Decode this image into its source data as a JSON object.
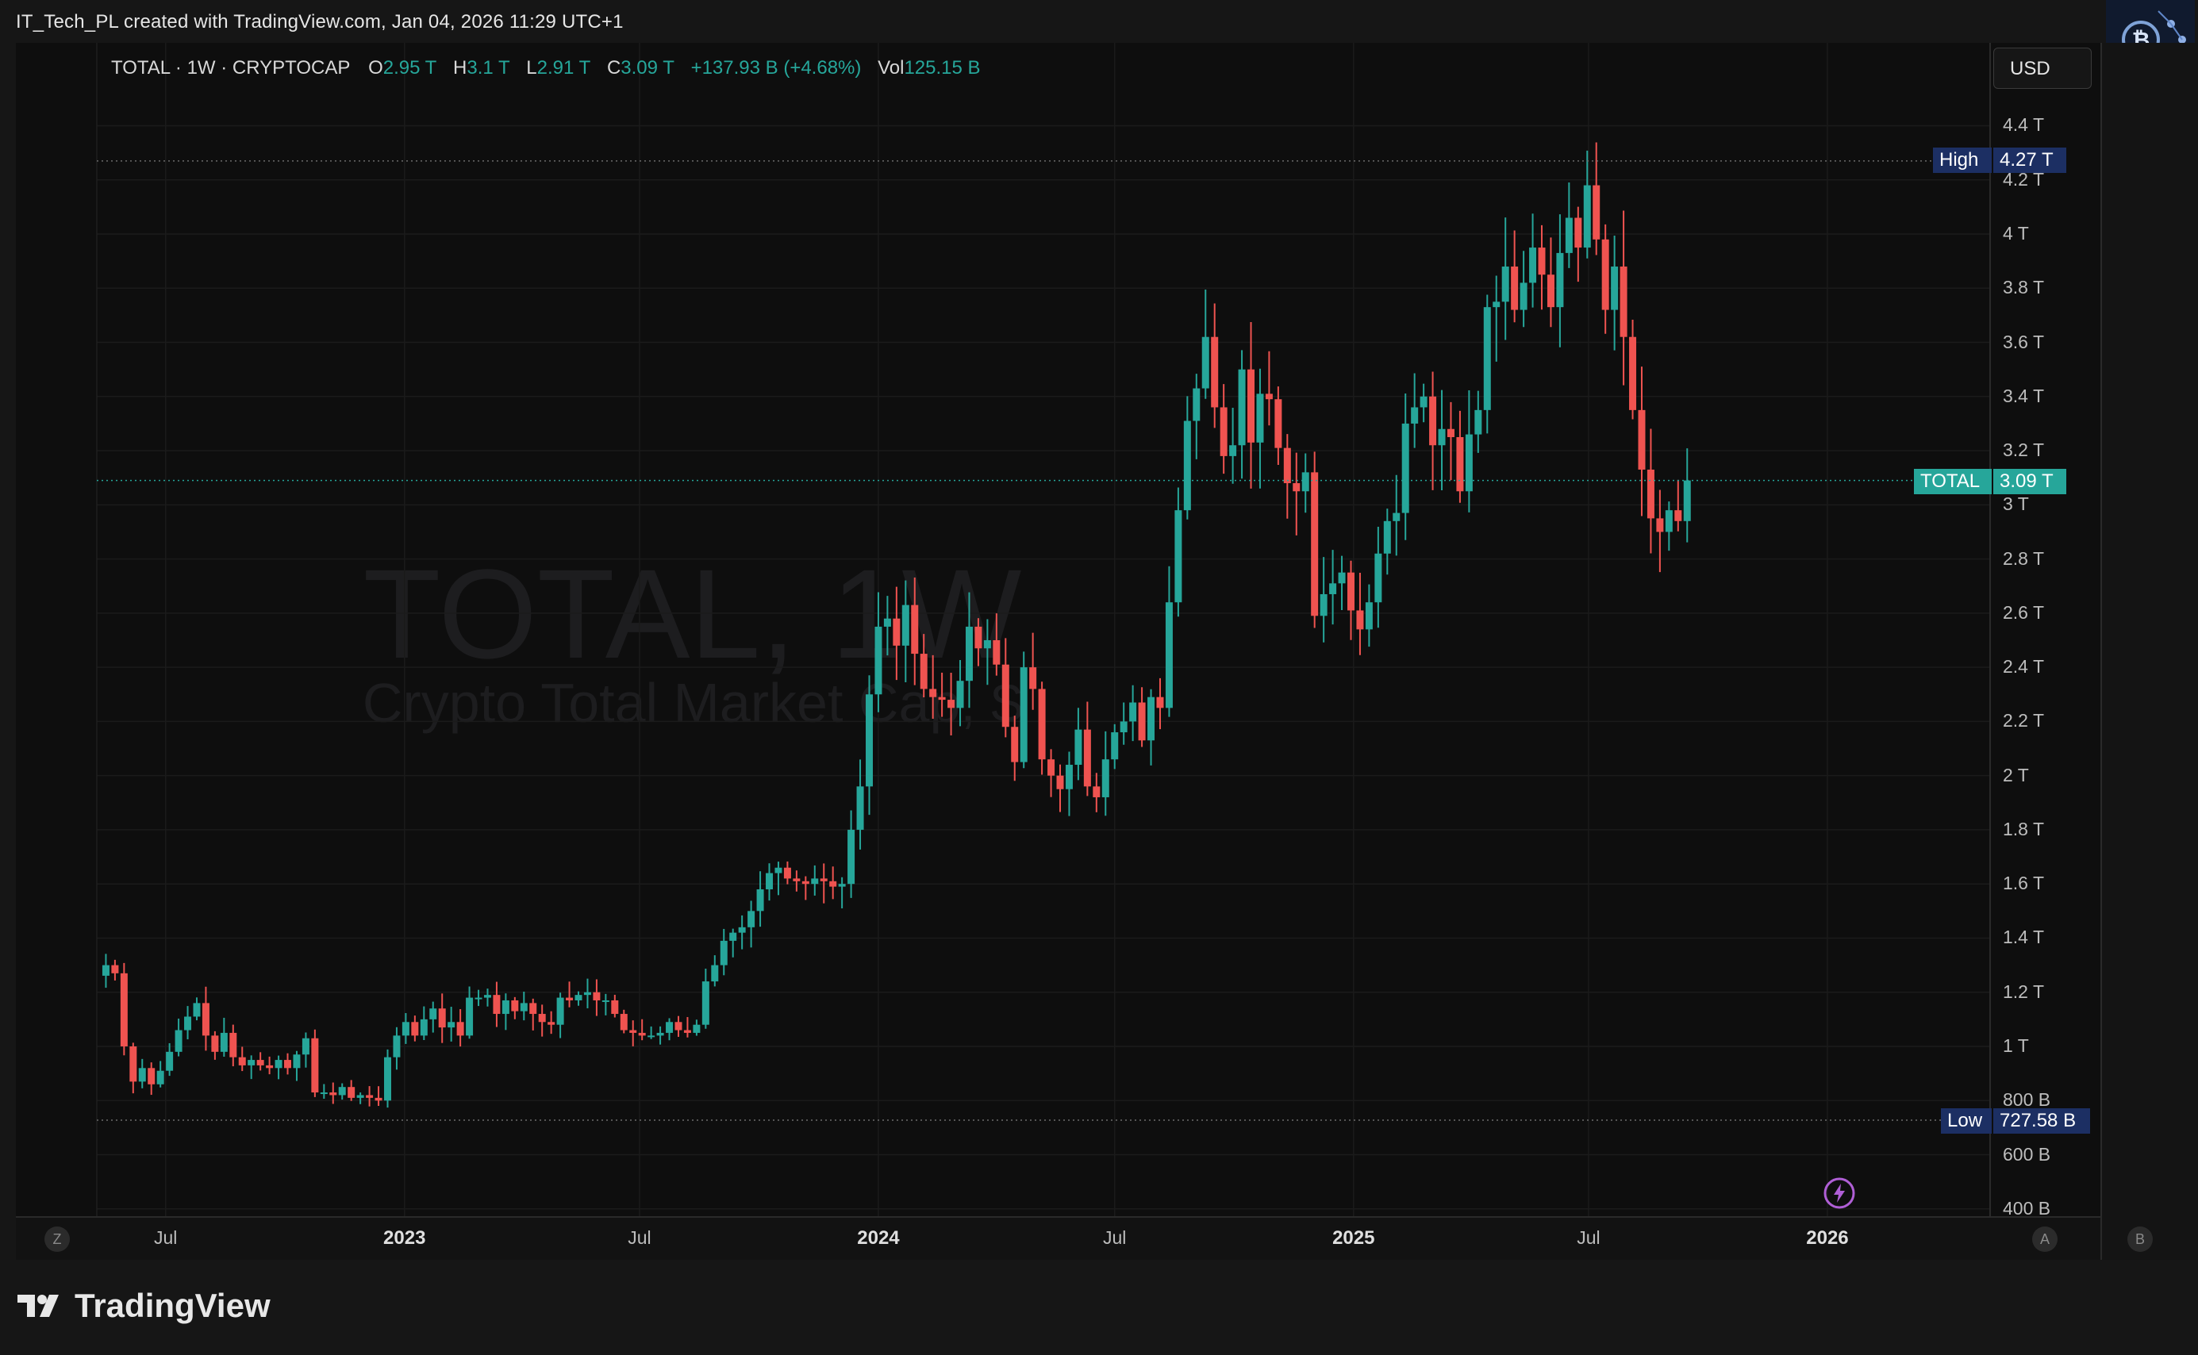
{
  "attribution": "IT_Tech_PL created with TradingView.com, Jan 04, 2026 11:29 UTC+1",
  "legend": {
    "symbol": "TOTAL · 1W · CRYPTOCAP",
    "open_label": "O",
    "open": "2.95 T",
    "high_label": "H",
    "high": "3.1 T",
    "low_label": "L",
    "low": "2.91 T",
    "close_label": "C",
    "close": "3.09 T",
    "change": "+137.93 B (+4.68%)",
    "vol_label": "Vol",
    "vol": "125.15 B"
  },
  "currency_button": "USD",
  "watermark": {
    "title": "TOTAL, 1W",
    "subtitle": "Crypto Total Market Cap, $"
  },
  "tags": {
    "high_label": "High",
    "high_value": "4.27 T",
    "last_label": "TOTAL",
    "last_value": "3.09 T",
    "low_label": "Low",
    "low_value": "727.58 B"
  },
  "axis_buttons": {
    "left": "Z",
    "auto": "A",
    "right": "B"
  },
  "footer": {
    "brand": "TradingView"
  },
  "icons": {
    "flash": "lightning-icon",
    "logo": "bitcoin-logo-icon",
    "brand": "tradingview-logo-icon"
  },
  "colors": {
    "up": "#26a69a",
    "down": "#ef5350",
    "tag_navy": "#1c2f63",
    "background": "#0e0e0e"
  },
  "chart_data": {
    "type": "candlestick",
    "title": "",
    "xlabel": "",
    "ylabel": "",
    "ylim": [
      400000000000,
      4500000000000
    ],
    "grid": true,
    "y_ticks": [
      {
        "value": 400000000000.0,
        "label": "400 B"
      },
      {
        "value": 600000000000.0,
        "label": "600 B"
      },
      {
        "value": 800000000000.0,
        "label": "800 B"
      },
      {
        "value": 1000000000000.0,
        "label": "1 T"
      },
      {
        "value": 1200000000000.0,
        "label": "1.2 T"
      },
      {
        "value": 1400000000000.0,
        "label": "1.4 T"
      },
      {
        "value": 1600000000000.0,
        "label": "1.6 T"
      },
      {
        "value": 1800000000000.0,
        "label": "1.8 T"
      },
      {
        "value": 2000000000000.0,
        "label": "2 T"
      },
      {
        "value": 2200000000000.0,
        "label": "2.2 T"
      },
      {
        "value": 2400000000000.0,
        "label": "2.4 T"
      },
      {
        "value": 2600000000000.0,
        "label": "2.6 T"
      },
      {
        "value": 2800000000000.0,
        "label": "2.8 T"
      },
      {
        "value": 3000000000000.0,
        "label": "3 T"
      },
      {
        "value": 3200000000000.0,
        "label": "3.2 T"
      },
      {
        "value": 3400000000000.0,
        "label": "3.4 T"
      },
      {
        "value": 3600000000000.0,
        "label": "3.6 T"
      },
      {
        "value": 3800000000000.0,
        "label": "3.8 T"
      },
      {
        "value": 4000000000000.0,
        "label": "4 T"
      },
      {
        "value": 4200000000000.0,
        "label": "4.2 T"
      },
      {
        "value": 4400000000000.0,
        "label": "4.4 T"
      }
    ],
    "x_ticks": [
      {
        "date": "2022-07-01",
        "label": "Jul",
        "bold": false
      },
      {
        "date": "2023-01-01",
        "label": "2023",
        "bold": true
      },
      {
        "date": "2023-07-01",
        "label": "Jul",
        "bold": false
      },
      {
        "date": "2024-01-01",
        "label": "2024",
        "bold": true
      },
      {
        "date": "2024-07-01",
        "label": "Jul",
        "bold": false
      },
      {
        "date": "2025-01-01",
        "label": "2025",
        "bold": true
      },
      {
        "date": "2025-07-01",
        "label": "Jul",
        "bold": false
      },
      {
        "date": "2026-01-01",
        "label": "2026",
        "bold": true
      }
    ],
    "x_range": [
      "2022-05-09",
      "2026-07-15"
    ],
    "high_line": 4270000000000.0,
    "last_line": 3090000000000.0,
    "low_line": 727580000000.0,
    "candles_start": "2022-05-16",
    "candles_interval_days": 7,
    "close_path_T": [
      1.3,
      1.27,
      1.0,
      0.87,
      0.92,
      0.86,
      0.91,
      0.98,
      1.06,
      1.11,
      1.16,
      1.04,
      0.98,
      1.05,
      0.96,
      0.93,
      0.95,
      0.93,
      0.92,
      0.95,
      0.92,
      0.97,
      1.03,
      0.83,
      0.83,
      0.82,
      0.85,
      0.81,
      0.82,
      0.81,
      0.8,
      0.96,
      1.04,
      1.09,
      1.04,
      1.1,
      1.14,
      1.07,
      1.09,
      1.04,
      1.18,
      1.18,
      1.19,
      1.12,
      1.17,
      1.13,
      1.16,
      1.12,
      1.09,
      1.08,
      1.18,
      1.17,
      1.19,
      1.2,
      1.17,
      1.17,
      1.12,
      1.06,
      1.05,
      1.04,
      1.04,
      1.05,
      1.09,
      1.06,
      1.05,
      1.08,
      1.24,
      1.3,
      1.39,
      1.42,
      1.44,
      1.5,
      1.58,
      1.64,
      1.66,
      1.62,
      1.61,
      1.6,
      1.62,
      1.61,
      1.59,
      1.6,
      1.8,
      1.96,
      2.3,
      2.55,
      2.58,
      2.48,
      2.63,
      2.45,
      2.32,
      2.29,
      2.28,
      2.25,
      2.35,
      2.55,
      2.47,
      2.5,
      2.41,
      2.18,
      2.05,
      2.4,
      2.32,
      2.06,
      2.0,
      1.95,
      2.04,
      2.17,
      1.96,
      1.92,
      2.06,
      2.16,
      2.2,
      2.27,
      2.13,
      2.29,
      2.25,
      2.64,
      2.98,
      3.31,
      3.43,
      3.62,
      3.36,
      3.18,
      3.22,
      3.5,
      3.23,
      3.41,
      3.39,
      3.21,
      3.08,
      3.05,
      3.12,
      2.59,
      2.67,
      2.71,
      2.75,
      2.61,
      2.54,
      2.64,
      2.82,
      2.94,
      2.97,
      3.3,
      3.36,
      3.4,
      3.22,
      3.28,
      3.25,
      3.05,
      3.26,
      3.35,
      3.73,
      3.75,
      3.88,
      3.72,
      3.82,
      3.95,
      3.85,
      3.73,
      3.93,
      4.06,
      3.95,
      4.18,
      3.98,
      3.72,
      3.88,
      3.62,
      3.35,
      3.13,
      2.95,
      2.9,
      2.98,
      2.94,
      3.09
    ]
  }
}
